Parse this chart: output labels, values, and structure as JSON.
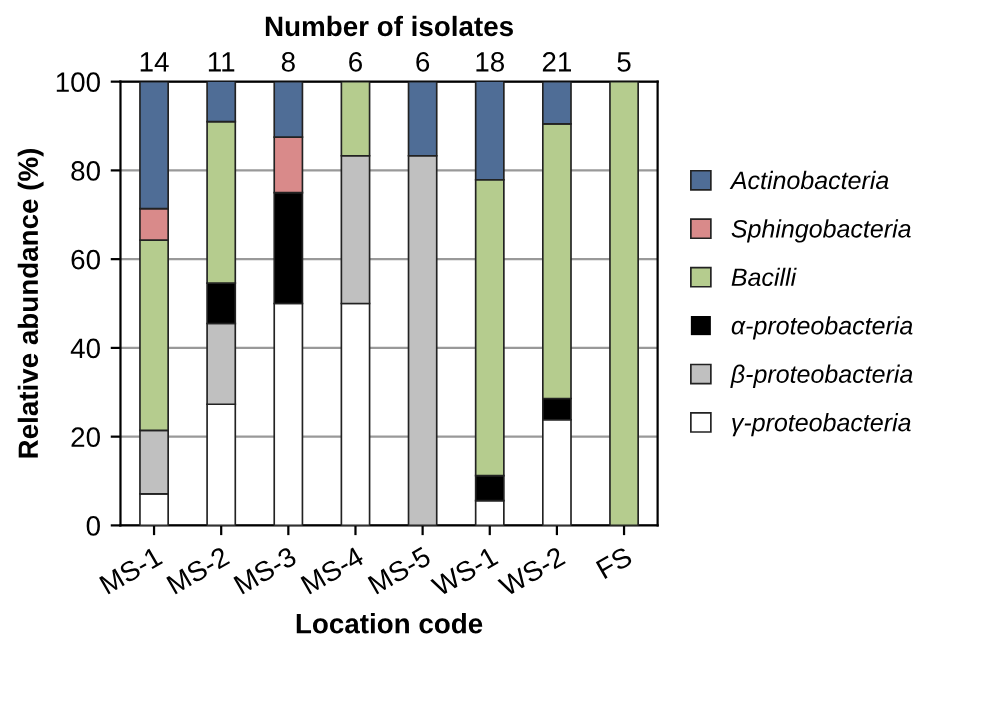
{
  "chart_data": {
    "type": "bar",
    "stacked": true,
    "x2label": "Number of isolates",
    "xlabel": "Location code",
    "ylabel": "Relative abundance (%)",
    "categories": [
      "MS-1",
      "MS-2",
      "MS-3",
      "MS-4",
      "MS-5",
      "WS-1",
      "WS-2",
      "FS"
    ],
    "annotations": [
      "14",
      "11",
      "8",
      "6",
      "6",
      "18",
      "21",
      "5"
    ],
    "series": [
      {
        "name": "γ-proteobacteria",
        "color": "#ffffff",
        "values": [
          7.1,
          27.3,
          50,
          50,
          0,
          5.6,
          23.8,
          0
        ]
      },
      {
        "name": "β-proteobacteria",
        "color": "#c0c0c0",
        "values": [
          14.3,
          18.2,
          0,
          33.3,
          83.3,
          0,
          0,
          0
        ]
      },
      {
        "name": "α-proteobacteria",
        "color": "#000000",
        "values": [
          0,
          9.1,
          25,
          0,
          0,
          5.6,
          4.8,
          0
        ]
      },
      {
        "name": "Bacilli",
        "color": "#b5cc8e",
        "values": [
          42.9,
          36.4,
          0,
          16.7,
          0,
          66.7,
          61.9,
          100
        ]
      },
      {
        "name": "Sphingobacteria",
        "color": "#d98a8a",
        "values": [
          7.1,
          0,
          12.5,
          0,
          0,
          0,
          0,
          0
        ]
      },
      {
        "name": "Actinobacteria",
        "color": "#4f6d96",
        "values": [
          28.6,
          9.1,
          12.5,
          0,
          16.7,
          22.2,
          9.5,
          0
        ]
      }
    ],
    "ylim": [
      0,
      100
    ],
    "yticks": [
      0,
      20,
      40,
      60,
      80,
      100
    ],
    "grid": "y",
    "legend": "right"
  }
}
